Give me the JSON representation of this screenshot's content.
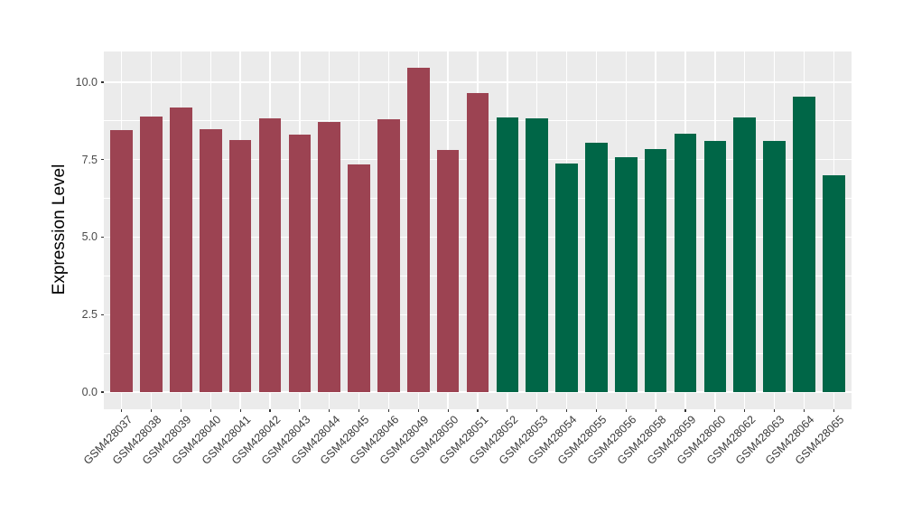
{
  "chart_data": {
    "type": "bar",
    "title": "",
    "xlabel": "",
    "ylabel": "Expression Level",
    "legend": "none",
    "grid": "on",
    "panel_background": "#EBEBEB",
    "gridline_color": "#FFFFFF",
    "categories": [
      "GSM428037",
      "GSM428038",
      "GSM428039",
      "GSM428040",
      "GSM428041",
      "GSM428042",
      "GSM428043",
      "GSM428044",
      "GSM428045",
      "GSM428046",
      "GSM428049",
      "GSM428050",
      "GSM428051",
      "GSM428052",
      "GSM428053",
      "GSM428054",
      "GSM428055",
      "GSM428056",
      "GSM428058",
      "GSM428059",
      "GSM428060",
      "GSM428062",
      "GSM428063",
      "GSM428064",
      "GSM428065"
    ],
    "values": [
      8.45,
      8.89,
      9.18,
      8.48,
      8.14,
      8.84,
      8.31,
      8.71,
      7.35,
      8.81,
      10.47,
      7.82,
      9.65,
      8.86,
      8.84,
      7.37,
      8.05,
      7.59,
      7.84,
      8.33,
      8.1,
      8.87,
      8.1,
      9.54,
      6.99
    ],
    "bar_groups": [
      "maroon",
      "maroon",
      "maroon",
      "maroon",
      "maroon",
      "maroon",
      "maroon",
      "maroon",
      "maroon",
      "maroon",
      "maroon",
      "maroon",
      "maroon",
      "green",
      "green",
      "green",
      "green",
      "green",
      "green",
      "green",
      "green",
      "green",
      "green",
      "green",
      "green"
    ],
    "palette": {
      "maroon": "#9C4352",
      "green": "#006647"
    },
    "y_axis": {
      "tick_labels": [
        "0.0",
        "2.5",
        "5.0",
        "7.5",
        "10.0"
      ],
      "tick_values": [
        0,
        2.5,
        5,
        7.5,
        10
      ],
      "minor_tick_values": [
        1.25,
        3.75,
        6.25,
        8.75
      ],
      "range": [
        -0.54,
        10.99
      ]
    },
    "x_axis_range": [
      0.4,
      25.6
    ]
  }
}
